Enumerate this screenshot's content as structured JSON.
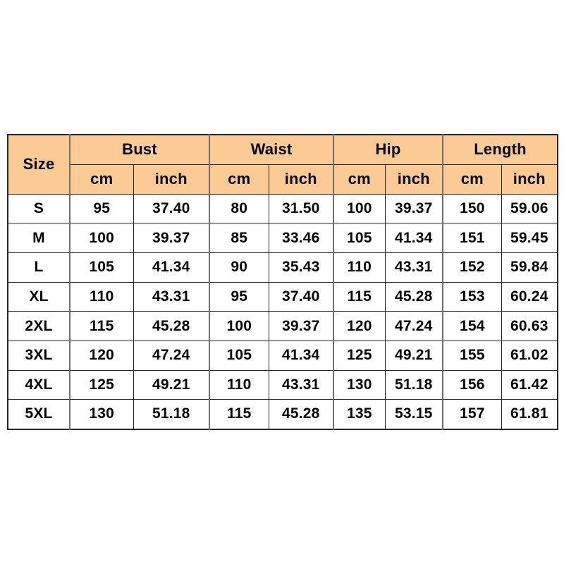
{
  "table": {
    "header": {
      "size_label": "Size",
      "groups": [
        {
          "label": "Bust"
        },
        {
          "label": "Waist"
        },
        {
          "label": "Hip"
        },
        {
          "label": "Length"
        }
      ],
      "unit_cm": "cm",
      "unit_inch": "inch"
    },
    "rows": [
      {
        "size": "S",
        "values": [
          "95",
          "37.40",
          "80",
          "31.50",
          "100",
          "39.37",
          "150",
          "59.06"
        ]
      },
      {
        "size": "M",
        "values": [
          "100",
          "39.37",
          "85",
          "33.46",
          "105",
          "41.34",
          "151",
          "59.45"
        ]
      },
      {
        "size": "L",
        "values": [
          "105",
          "41.34",
          "90",
          "35.43",
          "110",
          "43.31",
          "152",
          "59.84"
        ]
      },
      {
        "size": "XL",
        "values": [
          "110",
          "43.31",
          "95",
          "37.40",
          "115",
          "45.28",
          "153",
          "60.24"
        ]
      },
      {
        "size": "2XL",
        "values": [
          "115",
          "45.28",
          "100",
          "39.37",
          "120",
          "47.24",
          "154",
          "60.63"
        ]
      },
      {
        "size": "3XL",
        "values": [
          "120",
          "47.24",
          "105",
          "41.34",
          "125",
          "49.21",
          "155",
          "61.02"
        ]
      },
      {
        "size": "4XL",
        "values": [
          "125",
          "49.21",
          "110",
          "43.31",
          "130",
          "51.18",
          "156",
          "61.42"
        ]
      },
      {
        "size": "5XL",
        "values": [
          "130",
          "51.18",
          "115",
          "45.28",
          "135",
          "53.15",
          "157",
          "61.81"
        ]
      }
    ],
    "columns": [
      "size",
      "bust_cm",
      "bust_inch",
      "waist_cm",
      "waist_inch",
      "hip_cm",
      "hip_inch",
      "length_cm",
      "length_inch"
    ],
    "colors": {
      "header_bg": "#fcca94",
      "border": "#262626",
      "group_separator": "#6e6e6e",
      "text": "#000000",
      "page_bg": "#ffffff"
    }
  }
}
